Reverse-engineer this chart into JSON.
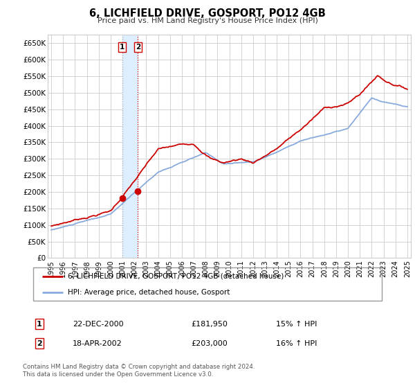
{
  "title": "6, LICHFIELD DRIVE, GOSPORT, PO12 4GB",
  "subtitle": "Price paid vs. HM Land Registry's House Price Index (HPI)",
  "ylim": [
    0,
    675000
  ],
  "yticks": [
    0,
    50000,
    100000,
    150000,
    200000,
    250000,
    300000,
    350000,
    400000,
    450000,
    500000,
    550000,
    600000,
    650000
  ],
  "ytick_labels": [
    "£0",
    "£50K",
    "£100K",
    "£150K",
    "£200K",
    "£250K",
    "£300K",
    "£350K",
    "£400K",
    "£450K",
    "£500K",
    "£550K",
    "£600K",
    "£650K"
  ],
  "xlim_start": 1994.7,
  "xlim_end": 2025.3,
  "xticks": [
    1995,
    1996,
    1997,
    1998,
    1999,
    2000,
    2001,
    2002,
    2003,
    2004,
    2005,
    2006,
    2007,
    2008,
    2009,
    2010,
    2011,
    2012,
    2013,
    2014,
    2015,
    2016,
    2017,
    2018,
    2019,
    2020,
    2021,
    2022,
    2023,
    2024,
    2025
  ],
  "property_color": "#cc0000",
  "hpi_color": "#88aadd",
  "sale1_x": 2000.97,
  "sale1_y": 181950,
  "sale2_x": 2002.3,
  "sale2_y": 203000,
  "legend_property": "6, LICHFIELD DRIVE, GOSPORT, PO12 4GB (detached house)",
  "legend_hpi": "HPI: Average price, detached house, Gosport",
  "table_row1": [
    "1",
    "22-DEC-2000",
    "£181,950",
    "15% ↑ HPI"
  ],
  "table_row2": [
    "2",
    "18-APR-2002",
    "£203,000",
    "16% ↑ HPI"
  ],
  "footnote1": "Contains HM Land Registry data © Crown copyright and database right 2024.",
  "footnote2": "This data is licensed under the Open Government Licence v3.0.",
  "background_color": "#ffffff",
  "grid_color": "#cccccc",
  "shade_color": "#ddeeff"
}
